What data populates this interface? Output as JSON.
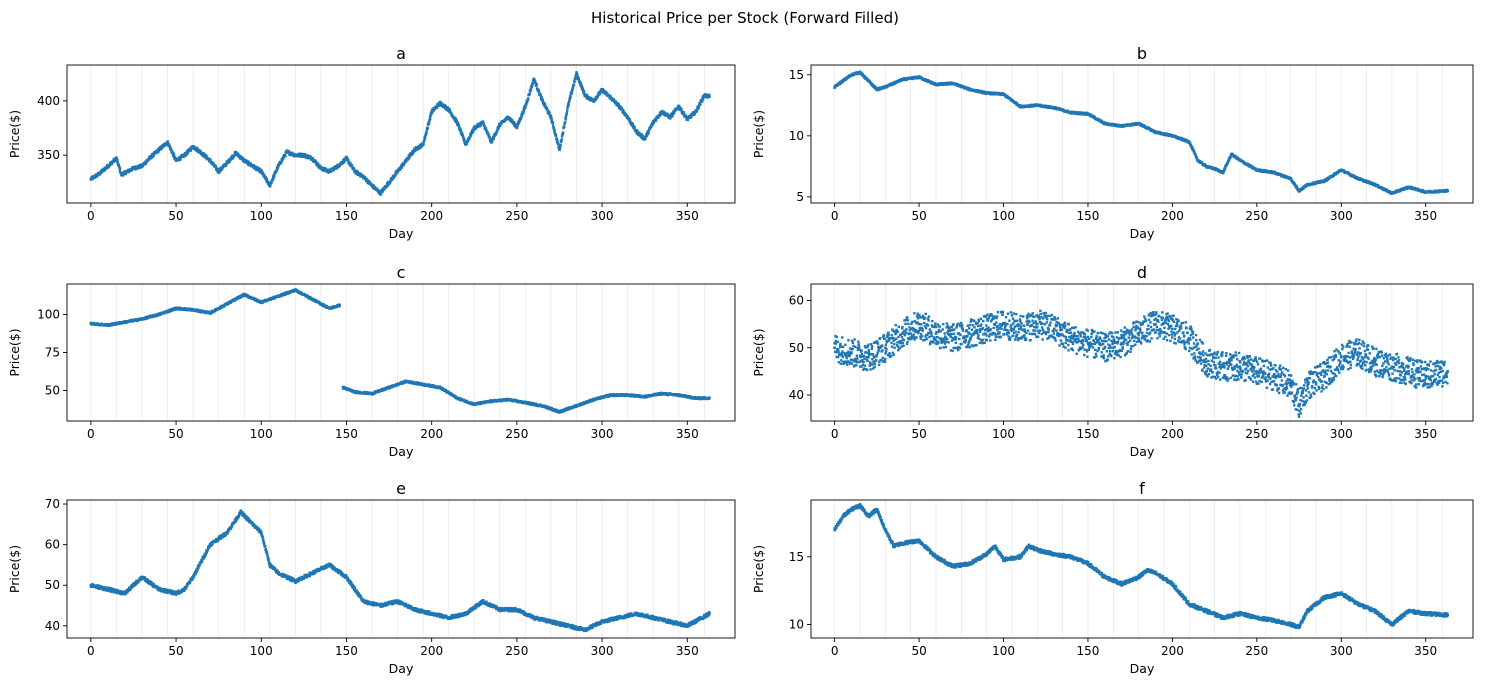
{
  "figure": {
    "title": "Historical Price per Stock (Forward Filled)",
    "series_color": "#1f77b4"
  },
  "chart_data": [
    {
      "type": "scatter",
      "title": "a",
      "xlabel": "Day",
      "ylabel": "Price($)",
      "xlim": [
        -14,
        378
      ],
      "ylim": [
        306,
        433
      ],
      "xticks": [
        0,
        50,
        100,
        150,
        200,
        250,
        300,
        350
      ],
      "yticks": [
        350,
        400
      ],
      "x": [
        0,
        5,
        10,
        15,
        18,
        25,
        30,
        35,
        40,
        45,
        50,
        55,
        60,
        65,
        70,
        75,
        80,
        85,
        90,
        95,
        100,
        105,
        110,
        115,
        120,
        125,
        130,
        135,
        140,
        145,
        150,
        155,
        160,
        165,
        170,
        175,
        180,
        185,
        190,
        195,
        200,
        205,
        210,
        215,
        220,
        225,
        230,
        235,
        240,
        245,
        250,
        255,
        260,
        265,
        270,
        275,
        280,
        285,
        290,
        295,
        300,
        305,
        310,
        315,
        320,
        325,
        330,
        335,
        340,
        345,
        350,
        355,
        360,
        363
      ],
      "y": [
        328,
        333,
        340,
        347,
        332,
        338,
        340,
        348,
        355,
        362,
        345,
        350,
        358,
        352,
        345,
        335,
        343,
        352,
        345,
        340,
        335,
        322,
        340,
        353,
        350,
        350,
        347,
        338,
        335,
        340,
        347,
        335,
        330,
        322,
        315,
        325,
        335,
        345,
        355,
        360,
        390,
        398,
        392,
        380,
        360,
        375,
        380,
        362,
        378,
        385,
        376,
        395,
        420,
        400,
        385,
        355,
        395,
        425,
        405,
        400,
        410,
        403,
        395,
        385,
        372,
        365,
        380,
        390,
        385,
        395,
        383,
        390,
        405,
        404
      ],
      "spread": 3
    },
    {
      "type": "scatter",
      "title": "b",
      "xlabel": "Day",
      "ylabel": "Price($)",
      "xlim": [
        -14,
        378
      ],
      "ylim": [
        4.5,
        15.8
      ],
      "xticks": [
        0,
        50,
        100,
        150,
        200,
        250,
        300,
        350
      ],
      "yticks": [
        5,
        10,
        15
      ],
      "x": [
        0,
        5,
        10,
        15,
        20,
        25,
        30,
        40,
        50,
        60,
        70,
        80,
        90,
        100,
        110,
        120,
        130,
        140,
        150,
        160,
        170,
        180,
        190,
        200,
        210,
        215,
        220,
        225,
        230,
        235,
        240,
        250,
        260,
        270,
        275,
        280,
        290,
        300,
        310,
        320,
        330,
        340,
        350,
        363
      ],
      "y": [
        14.0,
        14.5,
        15.0,
        15.2,
        14.5,
        13.8,
        14.0,
        14.6,
        14.8,
        14.2,
        14.3,
        13.8,
        13.5,
        13.4,
        12.4,
        12.5,
        12.3,
        11.9,
        11.8,
        11.0,
        10.8,
        11.0,
        10.3,
        10.0,
        9.5,
        8.0,
        7.5,
        7.3,
        7.0,
        8.5,
        8.0,
        7.2,
        7.0,
        6.5,
        5.5,
        6.0,
        6.3,
        7.2,
        6.5,
        6.0,
        5.3,
        5.8,
        5.4,
        5.5
      ],
      "spread": 0.15
    },
    {
      "type": "scatter",
      "title": "c",
      "xlabel": "Day",
      "ylabel": "Price($)",
      "xlim": [
        -14,
        378
      ],
      "ylim": [
        30,
        120
      ],
      "xticks": [
        0,
        50,
        100,
        150,
        200,
        250,
        300,
        350
      ],
      "yticks": [
        50,
        75,
        100
      ],
      "x": [
        0,
        10,
        20,
        30,
        40,
        50,
        60,
        70,
        80,
        90,
        100,
        110,
        120,
        130,
        140,
        146,
        null,
        148,
        155,
        165,
        175,
        185,
        195,
        205,
        215,
        225,
        235,
        245,
        255,
        265,
        275,
        285,
        295,
        305,
        315,
        325,
        335,
        345,
        355,
        363
      ],
      "y": [
        94,
        93,
        95,
        97,
        100,
        104,
        103,
        101,
        107,
        113,
        108,
        112,
        116,
        110,
        104,
        106,
        null,
        52,
        49,
        48,
        52,
        56,
        54,
        52,
        45,
        41,
        43,
        44,
        42,
        40,
        36,
        40,
        44,
        47,
        47,
        46,
        48,
        47,
        45,
        45
      ],
      "spread": 1.2
    },
    {
      "type": "scatter",
      "title": "d",
      "xlabel": "Day",
      "ylabel": "Price($)",
      "xlim": [
        -14,
        378
      ],
      "ylim": [
        34.5,
        63.5
      ],
      "xticks": [
        0,
        50,
        100,
        150,
        200,
        250,
        300,
        350
      ],
      "yticks": [
        40,
        50,
        60
      ],
      "x": [
        0,
        10,
        20,
        30,
        40,
        50,
        60,
        70,
        80,
        90,
        100,
        110,
        120,
        130,
        140,
        150,
        160,
        170,
        180,
        190,
        200,
        210,
        220,
        230,
        240,
        250,
        260,
        270,
        275,
        280,
        290,
        300,
        310,
        320,
        330,
        340,
        350,
        363
      ],
      "y": [
        50,
        49,
        48,
        50,
        53,
        55,
        53,
        52,
        53,
        54,
        55,
        54,
        55,
        54,
        52,
        51,
        50,
        51,
        53,
        55,
        54,
        52,
        47,
        46,
        46,
        45,
        44,
        42,
        38,
        42,
        44,
        48,
        49,
        47,
        46,
        45,
        44,
        45
      ],
      "spread": 6
    },
    {
      "type": "scatter",
      "title": "e",
      "xlabel": "Day",
      "ylabel": "Price($)",
      "xlim": [
        -14,
        378
      ],
      "ylim": [
        37,
        71
      ],
      "xticks": [
        0,
        50,
        100,
        150,
        200,
        250,
        300,
        350
      ],
      "yticks": [
        40,
        50,
        60,
        70
      ],
      "x": [
        0,
        10,
        20,
        30,
        40,
        50,
        55,
        60,
        70,
        80,
        88,
        95,
        100,
        105,
        110,
        120,
        130,
        140,
        150,
        160,
        170,
        180,
        190,
        200,
        210,
        220,
        230,
        240,
        250,
        260,
        270,
        280,
        290,
        300,
        310,
        320,
        330,
        340,
        350,
        363
      ],
      "y": [
        50,
        49,
        48,
        52,
        49,
        48,
        49,
        52,
        60,
        63,
        68,
        65,
        63,
        55,
        53,
        51,
        53,
        55,
        52,
        46,
        45,
        46,
        44,
        43,
        42,
        43,
        46,
        44,
        44,
        42,
        41,
        40,
        39,
        41,
        42,
        43,
        42,
        41,
        40,
        43
      ],
      "spread": 0.8
    },
    {
      "type": "scatter",
      "title": "f",
      "xlabel": "Day",
      "ylabel": "Price($)",
      "xlim": [
        -14,
        378
      ],
      "ylim": [
        9,
        19.2
      ],
      "xticks": [
        0,
        50,
        100,
        150,
        200,
        250,
        300,
        350
      ],
      "yticks": [
        10,
        15
      ],
      "x": [
        0,
        5,
        10,
        15,
        20,
        25,
        30,
        35,
        40,
        50,
        60,
        70,
        80,
        90,
        95,
        100,
        110,
        115,
        120,
        130,
        140,
        150,
        160,
        170,
        180,
        185,
        190,
        200,
        210,
        220,
        230,
        240,
        250,
        260,
        270,
        275,
        280,
        290,
        300,
        310,
        320,
        330,
        340,
        350,
        363
      ],
      "y": [
        17.0,
        18.0,
        18.5,
        18.8,
        18.0,
        18.5,
        17.0,
        15.8,
        16.0,
        16.2,
        15.0,
        14.3,
        14.5,
        15.2,
        15.8,
        14.8,
        15.0,
        15.8,
        15.5,
        15.2,
        15.0,
        14.5,
        13.5,
        13.0,
        13.5,
        14.0,
        13.8,
        13.0,
        11.5,
        11.0,
        10.5,
        10.8,
        10.5,
        10.3,
        10.0,
        9.8,
        11.0,
        12.0,
        12.3,
        11.5,
        11.0,
        10.0,
        11.0,
        10.8,
        10.7
      ],
      "spread": 0.25
    }
  ]
}
